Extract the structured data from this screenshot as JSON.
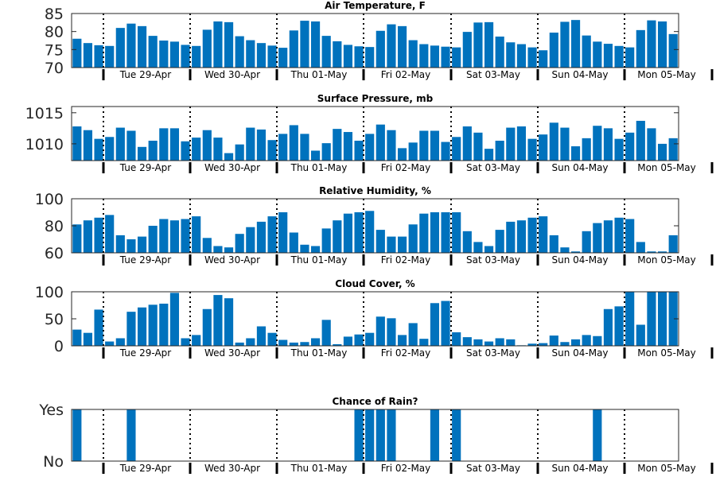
{
  "colors": {
    "bar": "#0072BD",
    "axis": "#262626",
    "divider": "#000000"
  },
  "day_labels": [
    "Tue 29-Apr",
    "Wed 30-Apr",
    "Thu 01-May",
    "Fri 02-May",
    "Sat 03-May",
    "Sun 04-May",
    "Mon 05-May"
  ],
  "chart_data": [
    {
      "type": "bar",
      "title": "Air Temperature, F",
      "ylim": [
        70,
        85
      ],
      "yticks": [
        70,
        75,
        80,
        85
      ],
      "ytick_labels": [
        "70",
        "75",
        "80",
        "85"
      ],
      "grid": false,
      "values": [
        78.0,
        76.8,
        76.2,
        76.0,
        81.0,
        82.2,
        81.5,
        78.8,
        77.5,
        77.2,
        76.3,
        76.0,
        80.5,
        82.8,
        82.6,
        78.7,
        77.6,
        76.8,
        76.1,
        75.5,
        80.3,
        83.0,
        82.8,
        78.8,
        77.3,
        76.3,
        75.9,
        75.7,
        80.2,
        82.0,
        81.5,
        77.6,
        76.5,
        76.1,
        75.8,
        75.6,
        79.9,
        82.5,
        82.6,
        78.6,
        77.0,
        76.5,
        75.6,
        74.8,
        79.7,
        82.7,
        83.2,
        78.9,
        77.2,
        76.6,
        76.0,
        75.6,
        80.4,
        83.1,
        82.8,
        79.3
      ]
    },
    {
      "type": "bar",
      "title": "Surface Pressure, mb",
      "ylim": [
        1007.3,
        1016.0
      ],
      "yticks": [
        1010,
        1015
      ],
      "ytick_labels": [
        "1010",
        "1015"
      ],
      "grid": false,
      "values": [
        1012.8,
        1012.2,
        1010.8,
        1011.1,
        1012.6,
        1012.1,
        1009.5,
        1010.5,
        1012.5,
        1012.5,
        1010.4,
        1011.0,
        1012.2,
        1011.0,
        1008.5,
        1009.9,
        1012.6,
        1012.3,
        1010.6,
        1011.6,
        1013.0,
        1011.6,
        1008.9,
        1010.1,
        1012.4,
        1011.9,
        1010.5,
        1011.6,
        1013.1,
        1012.2,
        1009.3,
        1010.2,
        1012.1,
        1012.1,
        1010.3,
        1011.1,
        1012.8,
        1011.8,
        1009.2,
        1010.5,
        1012.6,
        1012.8,
        1010.8,
        1011.5,
        1013.4,
        1012.6,
        1009.6,
        1010.9,
        1012.9,
        1012.5,
        1010.8,
        1011.8,
        1013.7,
        1012.5,
        1010.0,
        1010.9
      ]
    },
    {
      "type": "bar",
      "title": "Relative Humidity, %",
      "ylim": [
        60,
        100
      ],
      "yticks": [
        60,
        80,
        100
      ],
      "ytick_labels": [
        "60",
        "80",
        "100"
      ],
      "grid": false,
      "values": [
        81,
        84,
        86,
        88,
        73,
        70,
        72,
        80,
        85,
        84,
        85,
        87,
        71,
        65,
        64,
        74,
        79,
        83,
        87,
        90,
        75,
        66,
        65,
        78,
        84,
        89,
        90,
        91,
        77,
        72,
        72,
        81,
        89,
        90,
        90,
        90,
        76,
        68,
        65,
        77,
        83,
        84,
        86,
        87,
        73,
        64,
        61,
        76,
        82,
        84,
        86,
        85,
        68,
        61,
        61,
        73
      ]
    },
    {
      "type": "bar",
      "title": "Cloud Cover, %",
      "ylim": [
        0,
        100
      ],
      "yticks": [
        0,
        50,
        100
      ],
      "ytick_labels": [
        "0",
        "50",
        "100"
      ],
      "grid": false,
      "values": [
        30,
        24,
        67,
        8,
        14,
        63,
        71,
        76,
        78,
        98,
        14,
        20,
        68,
        94,
        88,
        6,
        14,
        36,
        24,
        11,
        6,
        7,
        14,
        48,
        3,
        17,
        21,
        24,
        54,
        51,
        20,
        42,
        13,
        79,
        83,
        25,
        16,
        12,
        8,
        14,
        12,
        1,
        4,
        5,
        19,
        7,
        12,
        20,
        18,
        68,
        73,
        100,
        39,
        100,
        100,
        100
      ]
    },
    {
      "type": "bar",
      "title": "Chance of Rain?",
      "ylim": [
        0,
        1
      ],
      "yticks": [
        0,
        1
      ],
      "ytick_labels": [
        "No",
        "Yes"
      ],
      "grid": false,
      "values": [
        1,
        0,
        0,
        0,
        0,
        1,
        0,
        0,
        0,
        0,
        0,
        0,
        0,
        0,
        0,
        0,
        0,
        0,
        0,
        0,
        0,
        0,
        0,
        0,
        0,
        0,
        1,
        1,
        1,
        1,
        0,
        0,
        0,
        1,
        0,
        1,
        0,
        0,
        0,
        0,
        0,
        0,
        0,
        0,
        0,
        0,
        0,
        0,
        1,
        0,
        0,
        0,
        0,
        0,
        0,
        0
      ]
    }
  ]
}
